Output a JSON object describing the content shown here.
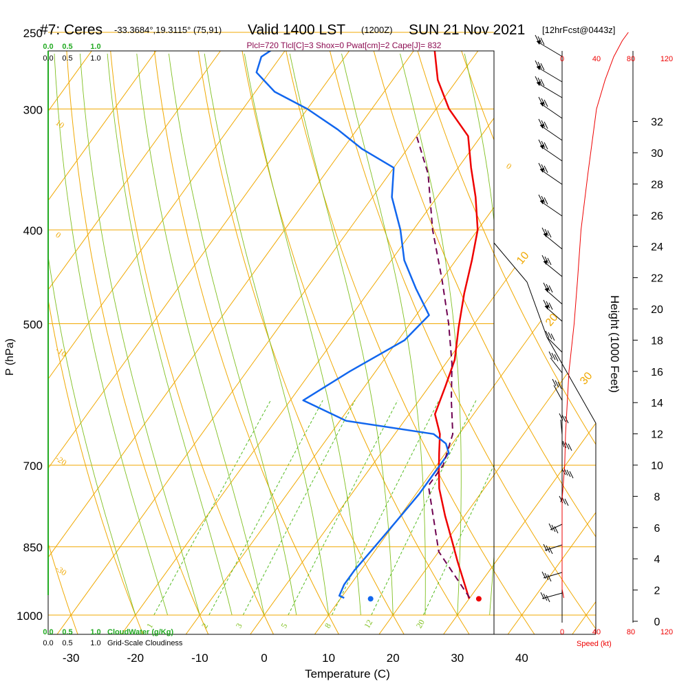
{
  "header": {
    "station": "#7: Ceres",
    "location": "-33.3684°,19.3115° (75,91)",
    "valid": "Valid 1400 LST",
    "zulu": "(1200Z)",
    "date": "SUN 21 Nov 2021",
    "forecast": "[12hrFcst@0443z]",
    "params": "Plcl=720 Tlcl[C]=3 Shox=0 Pwat[cm]=2 Cape[J]= 832"
  },
  "colors": {
    "isotherm": "#f0a800",
    "dry_adiabat": "#f0a800",
    "moist_adiabat": "#7fbf1f",
    "mixing_ratio": "#55bb22",
    "temperature": "#ee0000",
    "dewpoint": "#1166ee",
    "parcel": "#6e0050",
    "cloud_scale": "#22aa22",
    "speed": "#ee0000"
  },
  "chart_data": {
    "type": "line",
    "title": "Skew-T log-P sounding",
    "xlabel": "Temperature (C)",
    "ylabel": "P (hPa)",
    "right_label": "Height (1000 Feet)",
    "xlim": [
      -35,
      50
    ],
    "ylim": [
      1000,
      250
    ],
    "x_ticks": [
      -30,
      -20,
      -10,
      0,
      10,
      20,
      30,
      40
    ],
    "pressure_ticks": [
      250,
      300,
      400,
      500,
      700,
      850,
      1000
    ],
    "height_ticks": [
      0,
      2,
      4,
      6,
      8,
      10,
      12,
      14,
      16,
      18,
      20,
      22,
      24,
      26,
      28,
      30,
      32
    ],
    "isotherm_labels": [
      {
        "t": -10,
        "text": "10"
      },
      {
        "t": 0,
        "text": "0"
      },
      {
        "t": 10,
        "text": "10"
      },
      {
        "t": -20,
        "text": "-10"
      },
      {
        "t": -30,
        "text": "-20"
      },
      {
        "t": -40,
        "text": "-30"
      }
    ],
    "dry_adiabat_labels": [
      "0",
      "10",
      "20",
      "30"
    ],
    "mixing_ratio_labels": [
      "1",
      "2",
      "3",
      "5",
      "8",
      "12",
      "20"
    ],
    "cloud_water_ticks": [
      "0.0",
      "0.5",
      "1.0"
    ],
    "cloudiness_ticks": [
      "0.0",
      "0.5",
      "1.0"
    ],
    "cloud_water_label": "CloudWater (g/Kg)",
    "cloudiness_label": "Grid-Scale Cloudiness",
    "speed_ticks": [
      "0",
      "40",
      "80",
      "120"
    ],
    "speed_label": "Speed (kt)",
    "series": [
      {
        "name": "Temperature",
        "points": [
          [
            30,
            962
          ],
          [
            27,
            920
          ],
          [
            24,
            880
          ],
          [
            21,
            840
          ],
          [
            17,
            790
          ],
          [
            13,
            740
          ],
          [
            11,
            710
          ],
          [
            9,
            680
          ],
          [
            7,
            650
          ],
          [
            4,
            620
          ],
          [
            2.5,
            580
          ],
          [
            1,
            545
          ],
          [
            -2,
            505
          ],
          [
            -5,
            465
          ],
          [
            -7.5,
            430
          ],
          [
            -10,
            400
          ],
          [
            -14,
            370
          ],
          [
            -18,
            345
          ],
          [
            -22,
            320
          ],
          [
            -28,
            300
          ],
          [
            -33,
            280
          ],
          [
            -37,
            260
          ],
          [
            -40,
            250
          ]
        ]
      },
      {
        "name": "Dewpoint",
        "points": [
          [
            10.5,
            960
          ],
          [
            9.5,
            955
          ],
          [
            9,
            930
          ],
          [
            9,
            900
          ],
          [
            9.5,
            850
          ],
          [
            10,
            800
          ],
          [
            10.5,
            750
          ],
          [
            10.5,
            700
          ],
          [
            10.5,
            680
          ],
          [
            9,
            665
          ],
          [
            6,
            650
          ],
          [
            -9,
            630
          ],
          [
            -18,
            600
          ],
          [
            -14,
            560
          ],
          [
            -9,
            520
          ],
          [
            -8,
            490
          ],
          [
            -13,
            460
          ],
          [
            -18,
            430
          ],
          [
            -22,
            400
          ],
          [
            -27,
            370
          ],
          [
            -30,
            345
          ],
          [
            -37,
            330
          ],
          [
            -43,
            315
          ],
          [
            -50,
            300
          ],
          [
            -57,
            288
          ],
          [
            -62,
            275
          ],
          [
            -63,
            265
          ],
          [
            -60,
            250
          ]
        ]
      },
      {
        "name": "Parcel",
        "points": [
          [
            30,
            960
          ],
          [
            20,
            860
          ],
          [
            11,
            735
          ],
          [
            11,
            700
          ],
          [
            9,
            650
          ],
          [
            5,
            600
          ],
          [
            1,
            550
          ],
          [
            -4,
            500
          ],
          [
            -10,
            450
          ],
          [
            -17,
            400
          ],
          [
            -24,
            350
          ],
          [
            -30,
            320
          ]
        ]
      }
    ],
    "surface_temperature": 31.5,
    "surface_dewpoint": 14.7,
    "speed_profile_kt": [
      [
        2,
        960
      ],
      [
        0,
        940
      ],
      [
        0,
        900
      ],
      [
        0,
        850
      ],
      [
        0,
        800
      ],
      [
        0,
        760
      ],
      [
        3,
        700
      ],
      [
        4,
        650
      ],
      [
        8,
        560
      ],
      [
        14,
        500
      ],
      [
        18,
        450
      ],
      [
        22,
        400
      ],
      [
        30,
        350
      ],
      [
        40,
        300
      ],
      [
        50,
        280
      ],
      [
        60,
        265
      ],
      [
        70,
        255
      ],
      [
        77,
        250
      ]
    ]
  }
}
